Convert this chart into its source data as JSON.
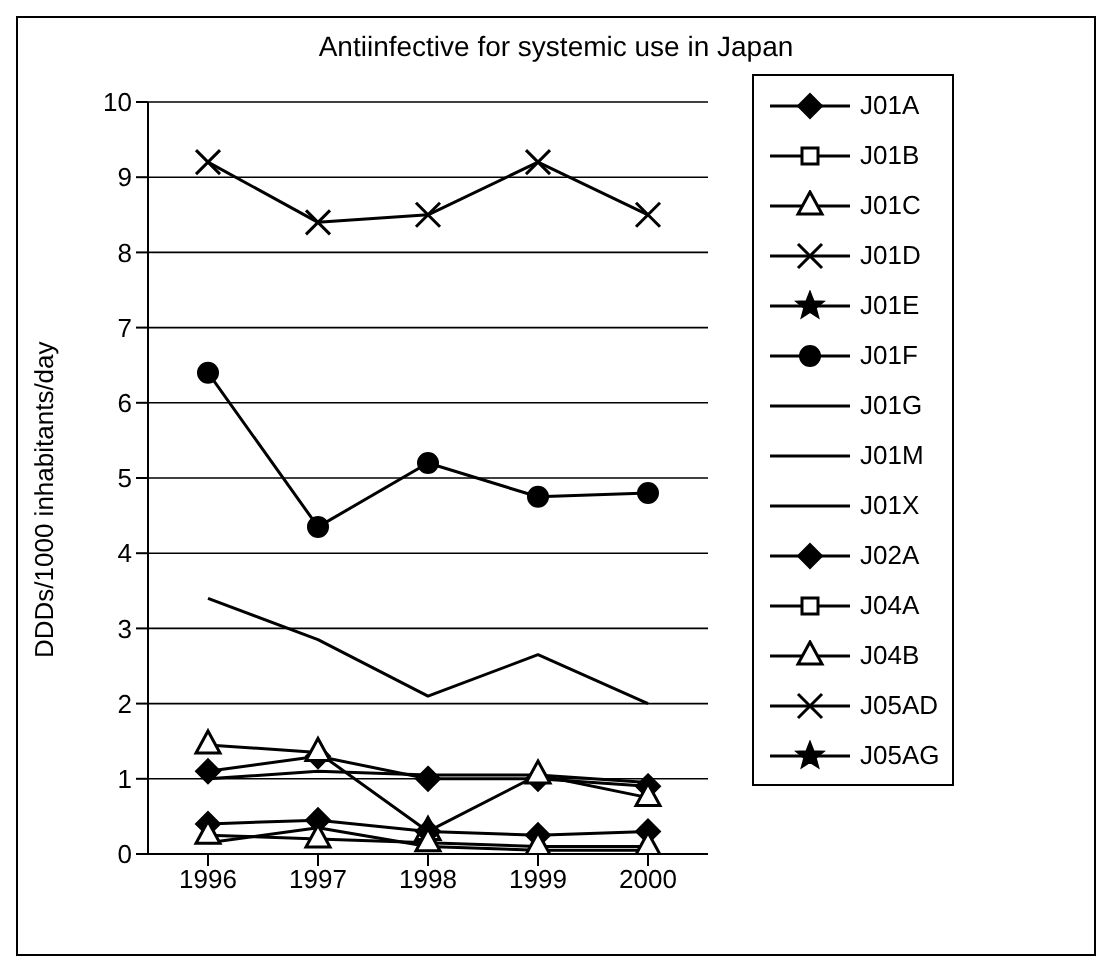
{
  "chart_data": {
    "type": "line",
    "title": "Antiinfective for systemic use in Japan",
    "ylabel": "DDDs/1000 inhabitants/day",
    "categories": [
      "1996",
      "1997",
      "1998",
      "1999",
      "2000"
    ],
    "ylim": [
      0,
      10
    ],
    "yticks": [
      0,
      1,
      2,
      3,
      4,
      5,
      6,
      7,
      8,
      9,
      10
    ],
    "grid": "y",
    "legend": "right",
    "series": [
      {
        "name": "J01A",
        "color": "#000000",
        "marker": "diamond",
        "values": [
          1.1,
          1.3,
          1.0,
          1.0,
          0.9
        ]
      },
      {
        "name": "J01B",
        "color": "#000000",
        "marker": "square",
        "values": [
          null,
          null,
          null,
          null,
          null
        ]
      },
      {
        "name": "J01C",
        "color": "#000000",
        "marker": "triangle",
        "values": [
          1.45,
          1.35,
          0.3,
          1.05,
          0.75
        ]
      },
      {
        "name": "J01D",
        "color": "#000000",
        "marker": "cross",
        "values": [
          9.2,
          8.4,
          8.5,
          9.2,
          8.5
        ]
      },
      {
        "name": "J01E",
        "color": "#000000",
        "marker": "star",
        "values": [
          null,
          null,
          null,
          null,
          null
        ]
      },
      {
        "name": "J01F",
        "color": "#000000",
        "marker": "circle",
        "values": [
          6.4,
          4.35,
          5.2,
          4.75,
          4.8
        ]
      },
      {
        "name": "J01G",
        "color": "#000000",
        "marker": "none",
        "values": [
          0.15,
          0.35,
          0.1,
          0.05,
          0.05
        ]
      },
      {
        "name": "J01M",
        "color": "#000000",
        "marker": "none",
        "values": [
          1.0,
          1.1,
          1.05,
          1.05,
          0.95
        ]
      },
      {
        "name": "J01X",
        "color": "#000000",
        "marker": "none",
        "values": [
          3.4,
          2.85,
          2.1,
          2.65,
          2.0
        ]
      },
      {
        "name": "J02A",
        "color": "#000000",
        "marker": "diamond",
        "values": [
          0.4,
          0.45,
          0.3,
          0.25,
          0.3
        ]
      },
      {
        "name": "J04A",
        "color": "#000000",
        "marker": "square",
        "values": [
          null,
          null,
          null,
          null,
          null
        ]
      },
      {
        "name": "J04B",
        "color": "#000000",
        "marker": "triangle",
        "values": [
          0.25,
          0.2,
          0.15,
          0.1,
          0.1
        ]
      },
      {
        "name": "J05AD",
        "color": "#000000",
        "marker": "cross",
        "values": [
          null,
          null,
          null,
          null,
          null
        ]
      },
      {
        "name": "J05AG",
        "color": "#000000",
        "marker": "star",
        "values": [
          null,
          null,
          null,
          null,
          null
        ]
      }
    ]
  }
}
